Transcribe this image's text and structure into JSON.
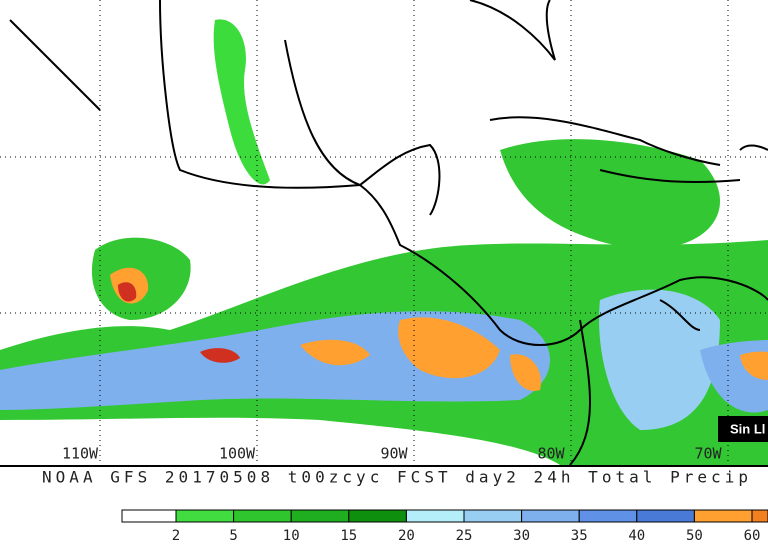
{
  "map": {
    "longitude_labels": [
      "110W",
      "100W",
      "90W",
      "80W",
      "70W"
    ],
    "caption": "NOAA GFS 20170508 t00zcyc FCST day2 24h Total Precip",
    "tooltip": "Sin Ll"
  },
  "colorbar": {
    "labels": [
      2,
      5,
      10,
      15,
      20,
      25,
      30,
      35,
      40,
      50,
      60
    ],
    "colors": [
      "#ffffff",
      "#40dc40",
      "#2ec52e",
      "#1fae1f",
      "#0e900e",
      "#b4eef8",
      "#98cef2",
      "#7eb0ee",
      "#5f92e6",
      "#4a7ad8",
      "#ffa030",
      "#f08020"
    ]
  }
}
